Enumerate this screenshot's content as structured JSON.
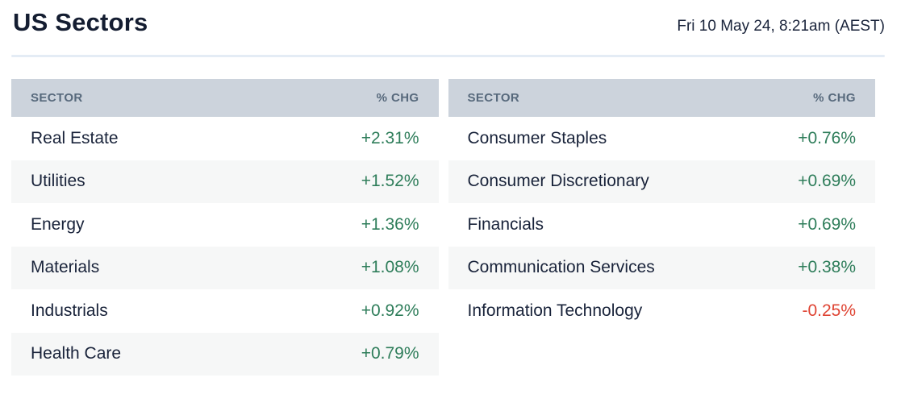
{
  "page": {
    "title": "US Sectors",
    "timestamp": "Fri 10 May 24, 8:21am (AEST)"
  },
  "colors": {
    "positive": "#2e7d5a",
    "negative": "#df4433",
    "header_bg": "#ccd3dc",
    "header_text": "#57697c",
    "row_alt_bg": "#f6f7f7",
    "row_text": "#19233a",
    "divider": "#e4ecf5",
    "title_text": "#141d31"
  },
  "chart_data": [
    {
      "type": "table",
      "columns": [
        "SECTOR",
        "% CHG"
      ],
      "rows": [
        {
          "sector": "Real Estate",
          "pct_chg": 2.31,
          "display": "+2.31%"
        },
        {
          "sector": "Utilities",
          "pct_chg": 1.52,
          "display": "+1.52%"
        },
        {
          "sector": "Energy",
          "pct_chg": 1.36,
          "display": "+1.36%"
        },
        {
          "sector": "Materials",
          "pct_chg": 1.08,
          "display": "+1.08%"
        },
        {
          "sector": "Industrials",
          "pct_chg": 0.92,
          "display": "+0.92%"
        },
        {
          "sector": "Health Care",
          "pct_chg": 0.79,
          "display": "+0.79%"
        }
      ]
    },
    {
      "type": "table",
      "columns": [
        "SECTOR",
        "% CHG"
      ],
      "rows": [
        {
          "sector": "Consumer Staples",
          "pct_chg": 0.76,
          "display": "+0.76%"
        },
        {
          "sector": "Consumer Discretionary",
          "pct_chg": 0.69,
          "display": "+0.69%"
        },
        {
          "sector": "Financials",
          "pct_chg": 0.69,
          "display": "+0.69%"
        },
        {
          "sector": "Communication Services",
          "pct_chg": 0.38,
          "display": "+0.38%"
        },
        {
          "sector": "Information Technology",
          "pct_chg": -0.25,
          "display": "-0.25%"
        }
      ]
    }
  ]
}
